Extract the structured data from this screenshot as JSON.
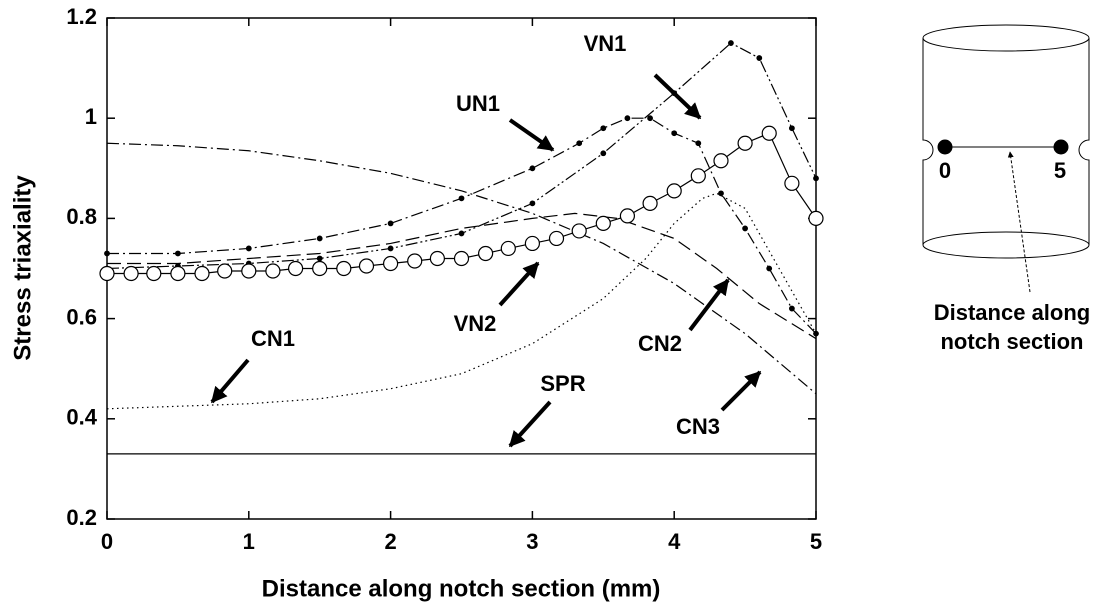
{
  "chart_data": {
    "type": "line",
    "xlabel": "Distance along notch section (mm)",
    "ylabel": "Stress triaxiality",
    "xlim": [
      0,
      5
    ],
    "xticks": [
      0,
      1,
      2,
      3,
      4,
      5
    ],
    "ylim": [
      0.2,
      1.2
    ],
    "yticks": [
      0.2,
      0.4,
      0.6,
      0.8,
      1,
      1.2
    ],
    "grid": false,
    "series": [
      {
        "name": "SPR",
        "color": "#000000",
        "line_style": "solid",
        "marker": "none",
        "x": [
          0,
          5
        ],
        "values": [
          0.33,
          0.33
        ]
      },
      {
        "name": "CN1",
        "color": "#000000",
        "line_style": "dotted",
        "marker": "none",
        "x": [
          0,
          0.5,
          1,
          1.5,
          2,
          2.5,
          3,
          3.5,
          3.8,
          4,
          4.2,
          4.3,
          4.5,
          4.7,
          5
        ],
        "values": [
          0.42,
          0.425,
          0.43,
          0.44,
          0.46,
          0.49,
          0.55,
          0.64,
          0.72,
          0.79,
          0.84,
          0.85,
          0.82,
          0.72,
          0.57
        ]
      },
      {
        "name": "CN2",
        "color": "#000000",
        "line_style": "dashed",
        "marker": "none",
        "x": [
          0,
          0.5,
          1,
          1.5,
          2,
          2.5,
          3,
          3.3,
          3.6,
          4,
          4.3,
          4.6,
          5
        ],
        "values": [
          0.71,
          0.71,
          0.72,
          0.73,
          0.75,
          0.78,
          0.8,
          0.81,
          0.8,
          0.76,
          0.7,
          0.63,
          0.56
        ]
      },
      {
        "name": "CN3",
        "color": "#000000",
        "line_style": "dashdot",
        "marker": "none",
        "x": [
          0,
          0.5,
          1,
          1.5,
          2,
          2.5,
          3,
          3.5,
          4,
          4.5,
          5
        ],
        "values": [
          0.95,
          0.945,
          0.935,
          0.915,
          0.89,
          0.855,
          0.81,
          0.75,
          0.67,
          0.57,
          0.45
        ]
      },
      {
        "name": "UN1",
        "color": "#000000",
        "line_style": "dashdot",
        "marker": "dot",
        "x": [
          0,
          0.5,
          1,
          1.5,
          2,
          2.5,
          3,
          3.33,
          3.5,
          3.67,
          3.83,
          4,
          4.17,
          4.33,
          4.5,
          4.67,
          4.83,
          5
        ],
        "values": [
          0.73,
          0.73,
          0.74,
          0.76,
          0.79,
          0.84,
          0.9,
          0.95,
          0.98,
          1.0,
          1.0,
          0.97,
          0.95,
          0.85,
          0.78,
          0.7,
          0.62,
          0.57
        ]
      },
      {
        "name": "VN1",
        "color": "#000000",
        "line_style": "dashdotdot",
        "marker": "dot",
        "x": [
          0,
          0.5,
          1,
          1.5,
          2,
          2.5,
          3,
          3.5,
          4,
          4.4,
          4.6,
          4.83,
          5
        ],
        "values": [
          0.7,
          0.705,
          0.71,
          0.72,
          0.74,
          0.77,
          0.83,
          0.93,
          1.05,
          1.15,
          1.12,
          0.98,
          0.88
        ]
      },
      {
        "name": "VN2",
        "color": "#000000",
        "line_style": "solid",
        "marker": "circle",
        "x": [
          0,
          0.17,
          0.33,
          0.5,
          0.67,
          0.83,
          1,
          1.17,
          1.33,
          1.5,
          1.67,
          1.83,
          2,
          2.17,
          2.33,
          2.5,
          2.67,
          2.83,
          3,
          3.17,
          3.33,
          3.5,
          3.67,
          3.83,
          4,
          4.17,
          4.33,
          4.5,
          4.67,
          4.83,
          5
        ],
        "values": [
          0.69,
          0.69,
          0.69,
          0.69,
          0.69,
          0.695,
          0.695,
          0.695,
          0.7,
          0.7,
          0.7,
          0.705,
          0.71,
          0.715,
          0.72,
          0.72,
          0.73,
          0.74,
          0.75,
          0.76,
          0.775,
          0.79,
          0.805,
          0.83,
          0.855,
          0.885,
          0.915,
          0.95,
          0.97,
          0.87,
          0.8
        ]
      }
    ]
  },
  "diagram": {
    "start_label": "0",
    "end_label": "5",
    "caption": [
      "Distance along",
      "notch section"
    ]
  }
}
